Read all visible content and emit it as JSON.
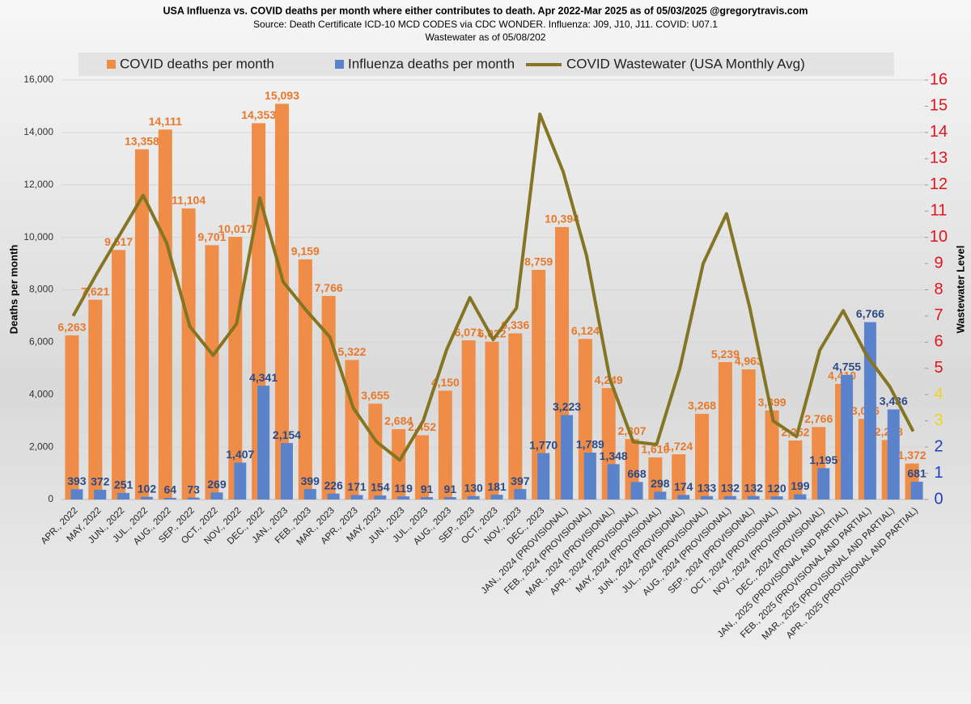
{
  "chart_data": {
    "type": "bar",
    "title": "USA Influenza vs. COVID deaths per month where either contributes to death.  Apr 2022-Mar 2025 as of 05/03/2025 @gregorytravis.com",
    "subtitle": [
      "Source: Death Certificate ICD-10 MCD CODES via CDC WONDER.  Influenza: J09, J10, J11.  COVID: U07.1",
      "Wastewater as of 05/08/202"
    ],
    "ylabel": "Deaths per month",
    "y2label": "Wastewater Level",
    "categories": [
      "APR., 2022",
      "MAY, 2022",
      "JUN., 2022",
      "JUL., 2022",
      "AUG., 2022",
      "SEP., 2022",
      "OCT., 2022",
      "NOV., 2022",
      "DEC., 2022",
      "JAN., 2023",
      "FEB., 2023",
      "MAR., 2023",
      "APR., 2023",
      "MAY, 2023",
      "JUN., 2023",
      "JUL., 2023",
      "AUG., 2023",
      "SEP., 2023",
      "OCT., 2023",
      "NOV., 2023",
      "DEC., 2023",
      "JAN., 2024 (PROVISIONAL)",
      "FEB., 2024 (PROVISIONAL)",
      "MAR., 2024 (PROVISIONAL)",
      "APR., 2024 (PROVISIONAL)",
      "MAY, 2024 (PROVISIONAL)",
      "JUN., 2024 (PROVISIONAL)",
      "JUL., 2024 (PROVISIONAL)",
      "AUG., 2024 (PROVISIONAL)",
      "SEP., 2024 (PROVISIONAL)",
      "OCT., 2024 (PROVISIONAL)",
      "NOV., 2024 (PROVISIONAL)",
      "DEC., 2024 (PROVISIONAL)",
      "JAN., 2025 (PROVISIONAL AND PARTIAL)",
      "FEB., 2025 (PROVISIONAL AND PARTIAL)",
      "MAR., 2025 (PROVISIONAL AND PARTIAL)",
      "APR., 2025 (PROVISIONAL AND PARTIAL)"
    ],
    "series": [
      {
        "name": "COVID deaths per month",
        "color": "#ef8c47",
        "label_color": "#e8782a",
        "type": "bar",
        "values": [
          6263,
          7621,
          9517,
          13358,
          14111,
          11104,
          9701,
          10017,
          14353,
          15093,
          9159,
          7766,
          5322,
          3655,
          2684,
          2452,
          4150,
          6071,
          6022,
          6336,
          8759,
          10394,
          6124,
          4249,
          2307,
          1610,
          1724,
          3268,
          5239,
          4963,
          3399,
          2252,
          2766,
          4410,
          3076,
          2268,
          1372
        ],
        "value_labels": [
          "6,263",
          "7,621",
          "9,517",
          "13,358",
          "14,111",
          "11,104",
          "9,701",
          "10,017",
          "14,353",
          "15,093",
          "9,159",
          "7,766",
          "5,322",
          "3,655",
          "2,684",
          "2,452",
          "4,150",
          "6,071",
          "6,022",
          "6,336",
          "8,759",
          "10,394",
          "6,124",
          "4,249",
          "2,307",
          "1,610",
          "1,724",
          "3,268",
          "5,239",
          "4,963",
          "3,399",
          "2,252",
          "2,766",
          "4,410",
          "3,076",
          "2,268",
          "1,372"
        ]
      },
      {
        "name": "Influenza deaths per month",
        "color": "#5a83cc",
        "label_color": "#2c4a86",
        "type": "bar",
        "values": [
          393,
          372,
          251,
          102,
          64,
          73,
          269,
          1407,
          4341,
          2154,
          399,
          226,
          171,
          154,
          119,
          91,
          91,
          130,
          181,
          397,
          1770,
          3223,
          1789,
          1348,
          668,
          298,
          174,
          133,
          132,
          132,
          120,
          199,
          1195,
          4755,
          6766,
          3436,
          681
        ],
        "value_labels": [
          "393",
          "372",
          "251",
          "102",
          "64",
          "73",
          "269",
          "1,407",
          "4,341",
          "2,154",
          "399",
          "226",
          "171",
          "154",
          "119",
          "91",
          "91",
          "130",
          "181",
          "397",
          "1,770",
          "3,223",
          "1,789",
          "1,348",
          "668",
          "298",
          "174",
          "133",
          "132",
          "132",
          "120",
          "199",
          "1,195",
          "4,755",
          "6,766",
          "3,436",
          "681"
        ]
      },
      {
        "name": "COVID Wastewater (USA Monthly Avg)",
        "color": "#857422",
        "type": "line",
        "axis": "y2",
        "values": [
          7.0,
          8.6,
          10.1,
          11.6,
          9.8,
          6.6,
          5.5,
          6.7,
          11.5,
          8.3,
          7.2,
          6.2,
          3.5,
          2.2,
          1.5,
          3.0,
          5.7,
          7.7,
          6.1,
          7.3,
          14.7,
          12.5,
          9.3,
          4.6,
          2.2,
          2.1,
          5.0,
          9.0,
          10.9,
          7.3,
          3.0,
          2.4,
          5.7,
          7.2,
          5.5,
          4.3,
          2.6
        ]
      }
    ],
    "ylim": [
      0,
      16000
    ],
    "yticks": [
      0,
      {
        "value": 2000,
        "label": "2,000"
      },
      {
        "value": 4000,
        "label": "4,000"
      },
      {
        "value": 6000,
        "label": "6,000"
      },
      {
        "value": 8000,
        "label": "8,000"
      },
      {
        "value": 10000,
        "label": "10,000"
      },
      {
        "value": 12000,
        "label": "12,000"
      },
      {
        "value": 14000,
        "label": "14,000"
      },
      {
        "value": 16000,
        "label": "16,000"
      }
    ],
    "y2lim": [
      0,
      16
    ],
    "y2ticks": [
      0,
      1,
      2,
      3,
      4,
      5,
      6,
      7,
      8,
      9,
      10,
      11,
      12,
      13,
      14,
      15,
      16
    ],
    "y2tick_colors": [
      "#1f3fbf",
      "#1f3fbf",
      "#1f3fbf",
      "#f2d21b",
      "#f2d21b",
      "#e0141b",
      "#e0141b",
      "#e0141b",
      "#e0141b",
      "#e0141b",
      "#e0141b",
      "#e0141b",
      "#e0141b",
      "#e0141b",
      "#e0141b",
      "#e0141b",
      "#e0141b"
    ],
    "grid": true,
    "legend": "top"
  }
}
